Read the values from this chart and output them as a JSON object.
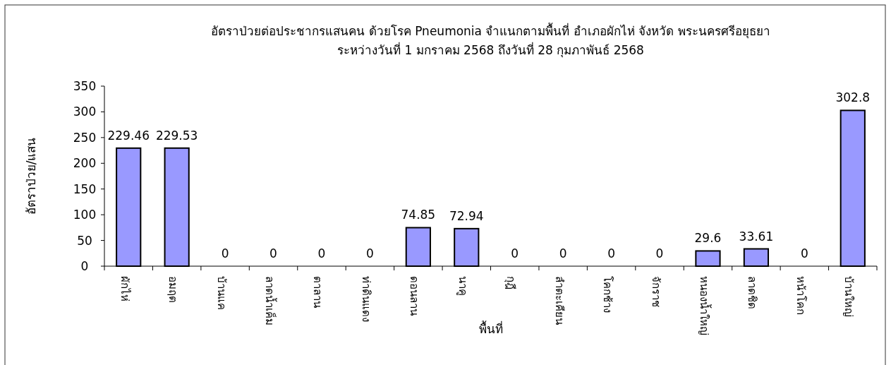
{
  "chart_data": {
    "type": "bar",
    "title": "อัตราป่วยต่อประชากรแสนคน ด้วยโรค Pneumonia  จำแนกตามพื้นที่ อำเภอผักไห่ จังหวัด พระนครศรีอยุธยา",
    "subtitle": "ระหว่างวันที่  1 มกราคม 2568  ถึงวันที่  28 กุมภาพันธ์ 2568",
    "xlabel": "พื้นที่",
    "ylabel": "อัตราป่วย/แสน",
    "categories": [
      "ผักไห่",
      "อมฤต",
      "บ้านแค",
      "ลาดน้ำเค็ม",
      "ตาลาน",
      "ท่าดินแดง",
      "ดอนลาน",
      "นาคู",
      "กุฎี",
      "ลำตะเคียน",
      "โคกช้าง",
      "จักราช",
      "หนองน้ำใหญ่",
      "ลาดชิด",
      "หน้าโคก",
      "บ้านใหญ่"
    ],
    "values": [
      229.46,
      229.53,
      0,
      0,
      0,
      0,
      74.85,
      72.94,
      0,
      0,
      0,
      0,
      29.6,
      33.61,
      0,
      302.8
    ],
    "color": "#9999ff",
    "ylim": [
      0,
      350
    ],
    "yticks": [
      0,
      50,
      100,
      150,
      200,
      250,
      300,
      350
    ],
    "data_labels": true
  }
}
